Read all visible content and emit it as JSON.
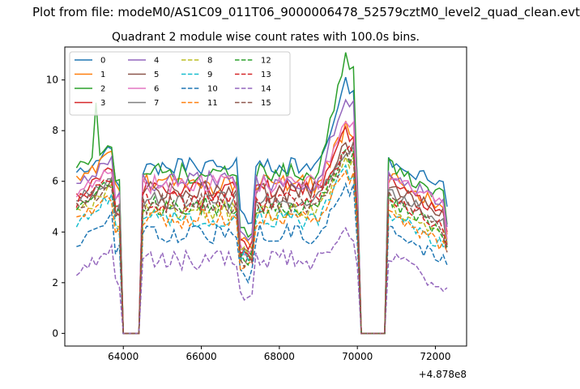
{
  "figure": {
    "suptitle": "Plot from file: modeM0/AS1C09_011T06_9000006478_52579cztM0_level2_quad_clean.evt"
  },
  "chart_data": {
    "type": "line",
    "title": "Quadrant 2 module wise count rates with 100.0s bins.",
    "xlabel": "",
    "ylabel": "",
    "x_offset_label": "+4.878e8",
    "xlim": [
      62500,
      72800
    ],
    "ylim": [
      -0.5,
      11.3
    ],
    "xticks": [
      64000,
      66000,
      68000,
      70000,
      72000
    ],
    "xtick_labels": [
      "64000",
      "66000",
      "68000",
      "70000",
      "72000"
    ],
    "yticks": [
      0,
      2,
      4,
      6,
      8,
      10
    ],
    "ytick_labels": [
      "0",
      "2",
      "4",
      "6",
      "8",
      "10"
    ],
    "grid": false,
    "legend_position": "top-left",
    "legend_columns": 4,
    "x_start": 62800,
    "x_step": 100,
    "segments": [
      {
        "from": 62800,
        "to": 63900,
        "profile": "seg1"
      },
      {
        "from": 64000,
        "to": 64400,
        "profile": "zero"
      },
      {
        "from": 64500,
        "to": 70000,
        "profile": "seg2"
      },
      {
        "from": 70100,
        "to": 70700,
        "profile": "zero"
      },
      {
        "from": 70800,
        "to": 72300,
        "profile": "seg3"
      }
    ],
    "series": [
      {
        "name": "0",
        "color": "#1f77b4",
        "dash": "solid",
        "level": 6.6,
        "seg1": 6.9,
        "peak": 10.1,
        "dip": 4.6
      },
      {
        "name": "1",
        "color": "#ff7f0e",
        "dash": "solid",
        "level": 5.9,
        "seg1": 6.6,
        "peak": 8.1,
        "dip": 3.5
      },
      {
        "name": "2",
        "color": "#2ca02c",
        "dash": "solid",
        "level": 6.3,
        "seg1": 7.1,
        "peak": 10.8,
        "dip": 3.9
      },
      {
        "name": "3",
        "color": "#d62728",
        "dash": "solid",
        "level": 5.7,
        "seg1": 6.0,
        "peak": 8.0,
        "dip": 3.6
      },
      {
        "name": "4",
        "color": "#9467bd",
        "dash": "solid",
        "level": 6.0,
        "seg1": 6.4,
        "peak": 9.5,
        "dip": 3.8
      },
      {
        "name": "5",
        "color": "#8c564b",
        "dash": "solid",
        "level": 5.6,
        "seg1": 5.7,
        "peak": 7.6,
        "dip": 3.1
      },
      {
        "name": "6",
        "color": "#e377c2",
        "dash": "solid",
        "level": 5.9,
        "seg1": 6.1,
        "peak": 8.3,
        "dip": 3.3
      },
      {
        "name": "7",
        "color": "#7f7f7f",
        "dash": "solid",
        "level": 5.3,
        "seg1": 5.8,
        "peak": 7.3,
        "dip": 3.0
      },
      {
        "name": "8",
        "color": "#bcbd22",
        "dash": "dashed",
        "level": 4.8,
        "seg1": 5.3,
        "peak": 7.0,
        "dip": 3.2
      },
      {
        "name": "9",
        "color": "#17becf",
        "dash": "dashed",
        "level": 4.5,
        "seg1": 5.0,
        "peak": 6.5,
        "dip": 3.0
      },
      {
        "name": "10",
        "color": "#1f77b4",
        "dash": "dashed",
        "level": 3.9,
        "seg1": 4.2,
        "peak": 5.8,
        "dip": 2.3
      },
      {
        "name": "11",
        "color": "#ff7f0e",
        "dash": "dashed",
        "level": 4.5,
        "seg1": 5.0,
        "peak": 6.4,
        "dip": 2.8
      },
      {
        "name": "12",
        "color": "#2ca02c",
        "dash": "dashed",
        "level": 5.0,
        "seg1": 5.6,
        "peak": 7.2,
        "dip": 3.0
      },
      {
        "name": "13",
        "color": "#d62728",
        "dash": "dashed",
        "level": 5.2,
        "seg1": 5.8,
        "peak": 7.4,
        "dip": 3.0
      },
      {
        "name": "14",
        "color": "#9467bd",
        "dash": "dashed",
        "level": 2.9,
        "seg1": 2.9,
        "peak": 3.9,
        "dip": 1.4
      },
      {
        "name": "15",
        "color": "#8c564b",
        "dash": "dashed",
        "level": 5.1,
        "seg1": 5.5,
        "peak": 7.0,
        "dip": 2.8
      }
    ]
  }
}
